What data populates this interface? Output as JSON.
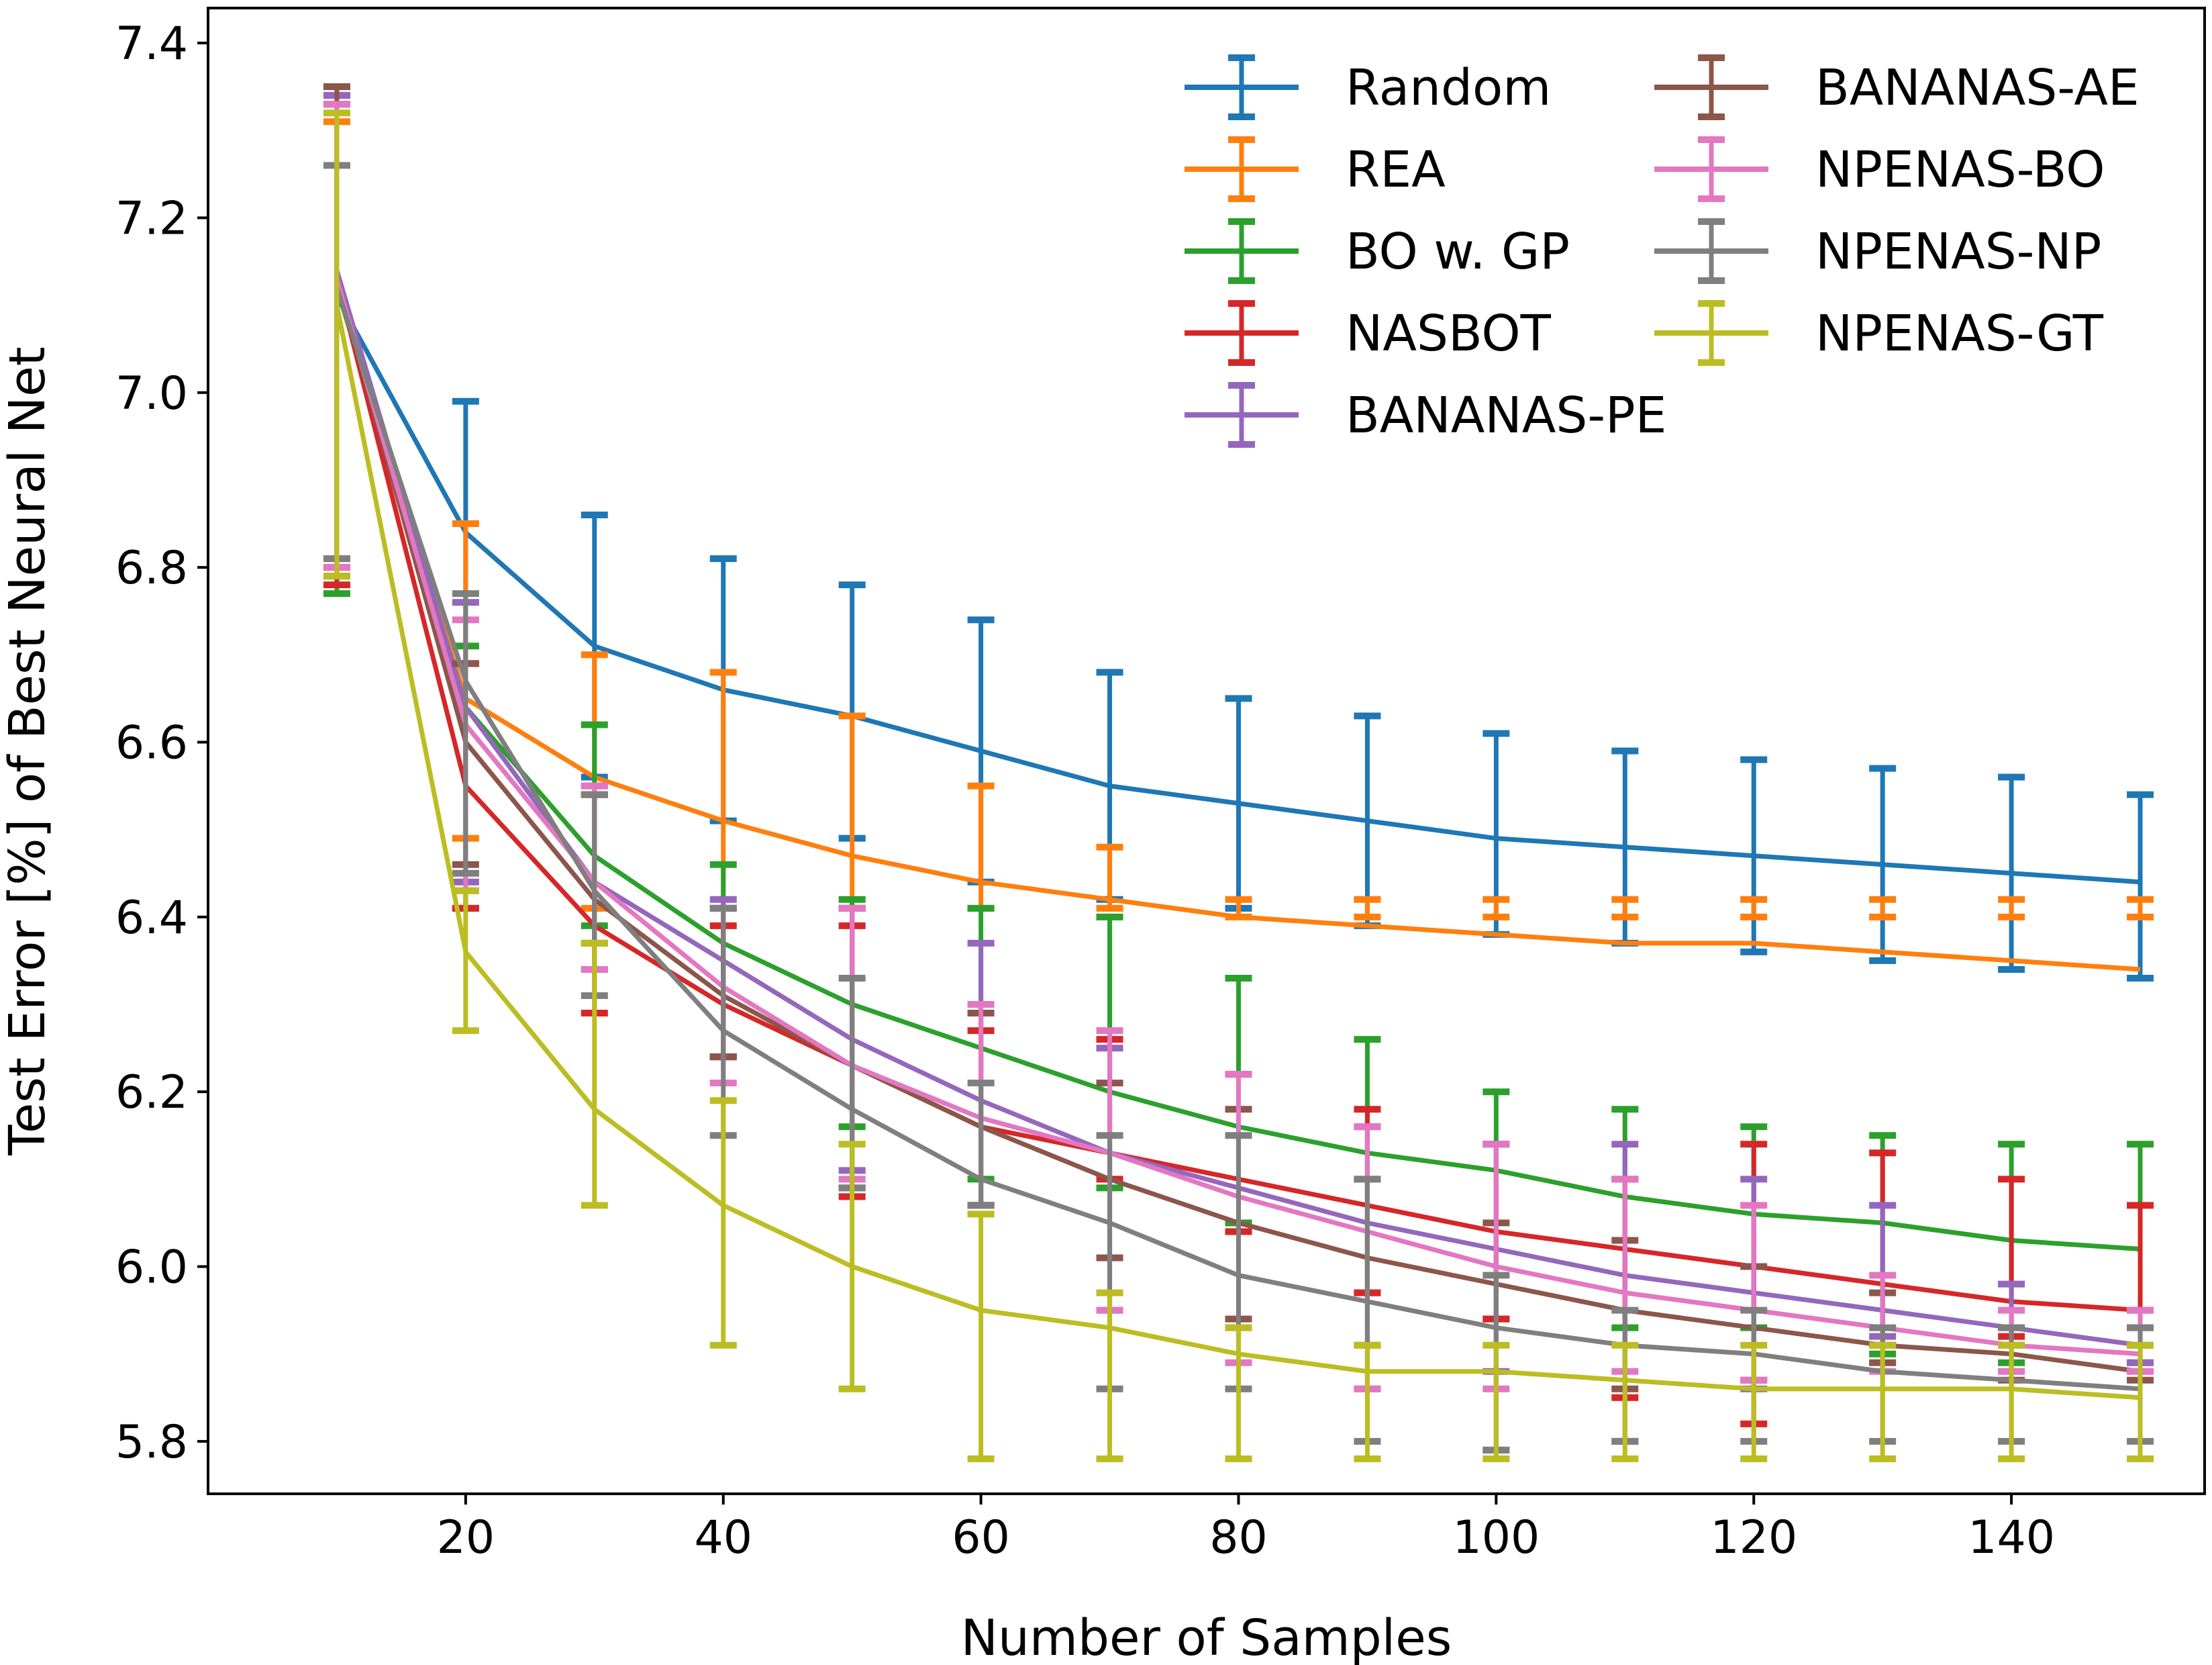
{
  "chart_data": {
    "type": "line",
    "title": "",
    "xlabel": "Number of Samples",
    "ylabel": "Test Error [%] of Best Neural Net",
    "xlim": [
      0,
      155
    ],
    "ylim": [
      5.74,
      7.44
    ],
    "xticks": [
      20,
      40,
      60,
      80,
      100,
      120,
      140
    ],
    "yticks": [
      5.8,
      6.0,
      6.2,
      6.4,
      6.6,
      6.8,
      7.0,
      7.2,
      7.4
    ],
    "xtick_labels": [
      "20",
      "40",
      "60",
      "80",
      "100",
      "120",
      "140"
    ],
    "ytick_labels": [
      "5.8",
      "6.0",
      "6.2",
      "6.4",
      "6.6",
      "6.8",
      "7.0",
      "7.2",
      "7.4"
    ],
    "grid": false,
    "legend_position": "top-right",
    "legend_columns": 2,
    "x": [
      10,
      20,
      30,
      40,
      50,
      60,
      70,
      80,
      90,
      100,
      110,
      120,
      130,
      140,
      150
    ],
    "series": [
      {
        "name": "Random",
        "color": "#1f77b4",
        "values": [
          7.11,
          6.84,
          6.71,
          6.66,
          6.63,
          6.59,
          6.55,
          6.53,
          6.51,
          6.49,
          6.48,
          6.47,
          6.46,
          6.45,
          6.44
        ],
        "err_low": [
          6.79,
          6.69,
          6.56,
          6.51,
          6.49,
          6.44,
          6.42,
          6.41,
          6.39,
          6.38,
          6.37,
          6.36,
          6.35,
          6.34,
          6.33
        ],
        "err_high": [
          7.33,
          6.99,
          6.86,
          6.81,
          6.78,
          6.74,
          6.68,
          6.65,
          6.63,
          6.61,
          6.59,
          6.58,
          6.57,
          6.56,
          6.54
        ]
      },
      {
        "name": "REA",
        "color": "#ff7f0e",
        "values": [
          7.12,
          6.65,
          6.56,
          6.51,
          6.47,
          6.44,
          6.42,
          6.4,
          6.39,
          6.38,
          6.37,
          6.37,
          6.36,
          6.35,
          6.34
        ],
        "err_low": [
          6.8,
          6.49,
          6.41,
          6.41,
          6.41,
          6.41,
          6.41,
          6.4,
          6.4,
          6.4,
          6.4,
          6.4,
          6.4,
          6.4,
          6.4
        ],
        "err_high": [
          7.31,
          6.85,
          6.7,
          6.68,
          6.63,
          6.55,
          6.48,
          6.42,
          6.42,
          6.42,
          6.42,
          6.42,
          6.42,
          6.42,
          6.42
        ]
      },
      {
        "name": "BO w. GP",
        "color": "#2ca02c",
        "values": [
          7.12,
          6.64,
          6.47,
          6.37,
          6.3,
          6.25,
          6.2,
          6.16,
          6.13,
          6.11,
          6.08,
          6.06,
          6.05,
          6.03,
          6.02
        ],
        "err_low": [
          6.77,
          6.41,
          6.39,
          6.24,
          6.16,
          6.1,
          6.09,
          6.05,
          5.97,
          5.94,
          5.93,
          5.93,
          5.9,
          5.89,
          5.89
        ],
        "err_high": [
          7.35,
          6.71,
          6.62,
          6.46,
          6.42,
          6.41,
          6.4,
          6.33,
          6.26,
          6.2,
          6.18,
          6.16,
          6.15,
          6.14,
          6.14
        ]
      },
      {
        "name": "NASBOT",
        "color": "#d62728",
        "values": [
          7.13,
          6.55,
          6.39,
          6.3,
          6.23,
          6.16,
          6.13,
          6.1,
          6.07,
          6.04,
          6.02,
          6.0,
          5.98,
          5.96,
          5.95
        ],
        "err_low": [
          6.78,
          6.41,
          6.29,
          6.24,
          6.08,
          6.07,
          6.1,
          6.04,
          5.97,
          5.94,
          5.85,
          5.82,
          5.91,
          5.92,
          5.93
        ],
        "err_high": [
          7.34,
          6.69,
          6.54,
          6.39,
          6.39,
          6.27,
          6.26,
          6.22,
          6.18,
          6.14,
          6.1,
          6.14,
          6.13,
          6.1,
          6.07
        ]
      },
      {
        "name": "BANANAS-PE",
        "color": "#9467bd",
        "values": [
          7.14,
          6.64,
          6.44,
          6.35,
          6.26,
          6.19,
          6.13,
          6.09,
          6.05,
          6.02,
          5.99,
          5.97,
          5.95,
          5.93,
          5.91
        ],
        "err_low": [
          6.81,
          6.44,
          6.34,
          6.24,
          6.11,
          6.07,
          5.95,
          5.93,
          5.86,
          5.88,
          5.8,
          5.86,
          5.92,
          5.91,
          5.89
        ],
        "err_high": [
          7.34,
          6.76,
          6.55,
          6.42,
          6.41,
          6.37,
          6.25,
          6.22,
          6.16,
          6.14,
          6.14,
          6.1,
          6.07,
          5.98,
          5.95
        ]
      },
      {
        "name": "BANANAS-AE",
        "color": "#8c564b",
        "values": [
          7.13,
          6.6,
          6.42,
          6.31,
          6.23,
          6.16,
          6.1,
          6.05,
          6.01,
          5.98,
          5.95,
          5.93,
          5.91,
          5.9,
          5.88
        ],
        "err_low": [
          6.8,
          6.46,
          6.37,
          6.24,
          6.09,
          6.07,
          6.01,
          5.94,
          5.91,
          5.79,
          5.86,
          5.87,
          5.89,
          5.87,
          5.87
        ],
        "err_high": [
          7.35,
          6.69,
          6.54,
          6.41,
          6.41,
          6.29,
          6.21,
          6.18,
          6.1,
          6.05,
          6.03,
          6.0,
          5.97,
          5.93,
          5.91
        ]
      },
      {
        "name": "NPENAS-BO",
        "color": "#e377c2",
        "values": [
          7.13,
          6.62,
          6.44,
          6.32,
          6.23,
          6.17,
          6.13,
          6.08,
          6.04,
          6.0,
          5.97,
          5.95,
          5.93,
          5.91,
          5.9
        ],
        "err_low": [
          6.8,
          6.43,
          6.34,
          6.21,
          6.1,
          6.07,
          5.95,
          5.89,
          5.86,
          5.86,
          5.88,
          5.87,
          5.88,
          5.88,
          5.88
        ],
        "err_high": [
          7.33,
          6.74,
          6.55,
          6.41,
          6.41,
          6.3,
          6.27,
          6.22,
          6.16,
          6.14,
          6.1,
          6.07,
          5.99,
          5.95,
          5.95
        ]
      },
      {
        "name": "NPENAS-NP",
        "color": "#7f7f7f",
        "values": [
          7.12,
          6.67,
          6.43,
          6.27,
          6.18,
          6.1,
          6.05,
          5.99,
          5.96,
          5.93,
          5.91,
          5.9,
          5.88,
          5.87,
          5.86
        ],
        "err_low": [
          6.81,
          6.45,
          6.31,
          6.15,
          6.09,
          6.07,
          5.86,
          5.86,
          5.8,
          5.79,
          5.8,
          5.8,
          5.8,
          5.8,
          5.8
        ],
        "err_high": [
          7.26,
          6.77,
          6.54,
          6.41,
          6.33,
          6.21,
          6.15,
          6.15,
          6.1,
          5.99,
          5.95,
          5.95,
          5.93,
          5.93,
          5.93
        ]
      },
      {
        "name": "NPENAS-GT",
        "color": "#bcbd22",
        "values": [
          7.1,
          6.36,
          6.18,
          6.07,
          6.0,
          5.95,
          5.93,
          5.9,
          5.88,
          5.88,
          5.87,
          5.86,
          5.86,
          5.86,
          5.85
        ],
        "err_low": [
          6.79,
          6.27,
          6.07,
          5.91,
          5.86,
          5.78,
          5.78,
          5.78,
          5.78,
          5.78,
          5.78,
          5.78,
          5.78,
          5.78,
          5.78
        ],
        "err_high": [
          7.32,
          6.43,
          6.37,
          6.19,
          6.14,
          6.06,
          5.97,
          5.93,
          5.91,
          5.91,
          5.91,
          5.91,
          5.91,
          5.91,
          5.91
        ]
      }
    ]
  }
}
